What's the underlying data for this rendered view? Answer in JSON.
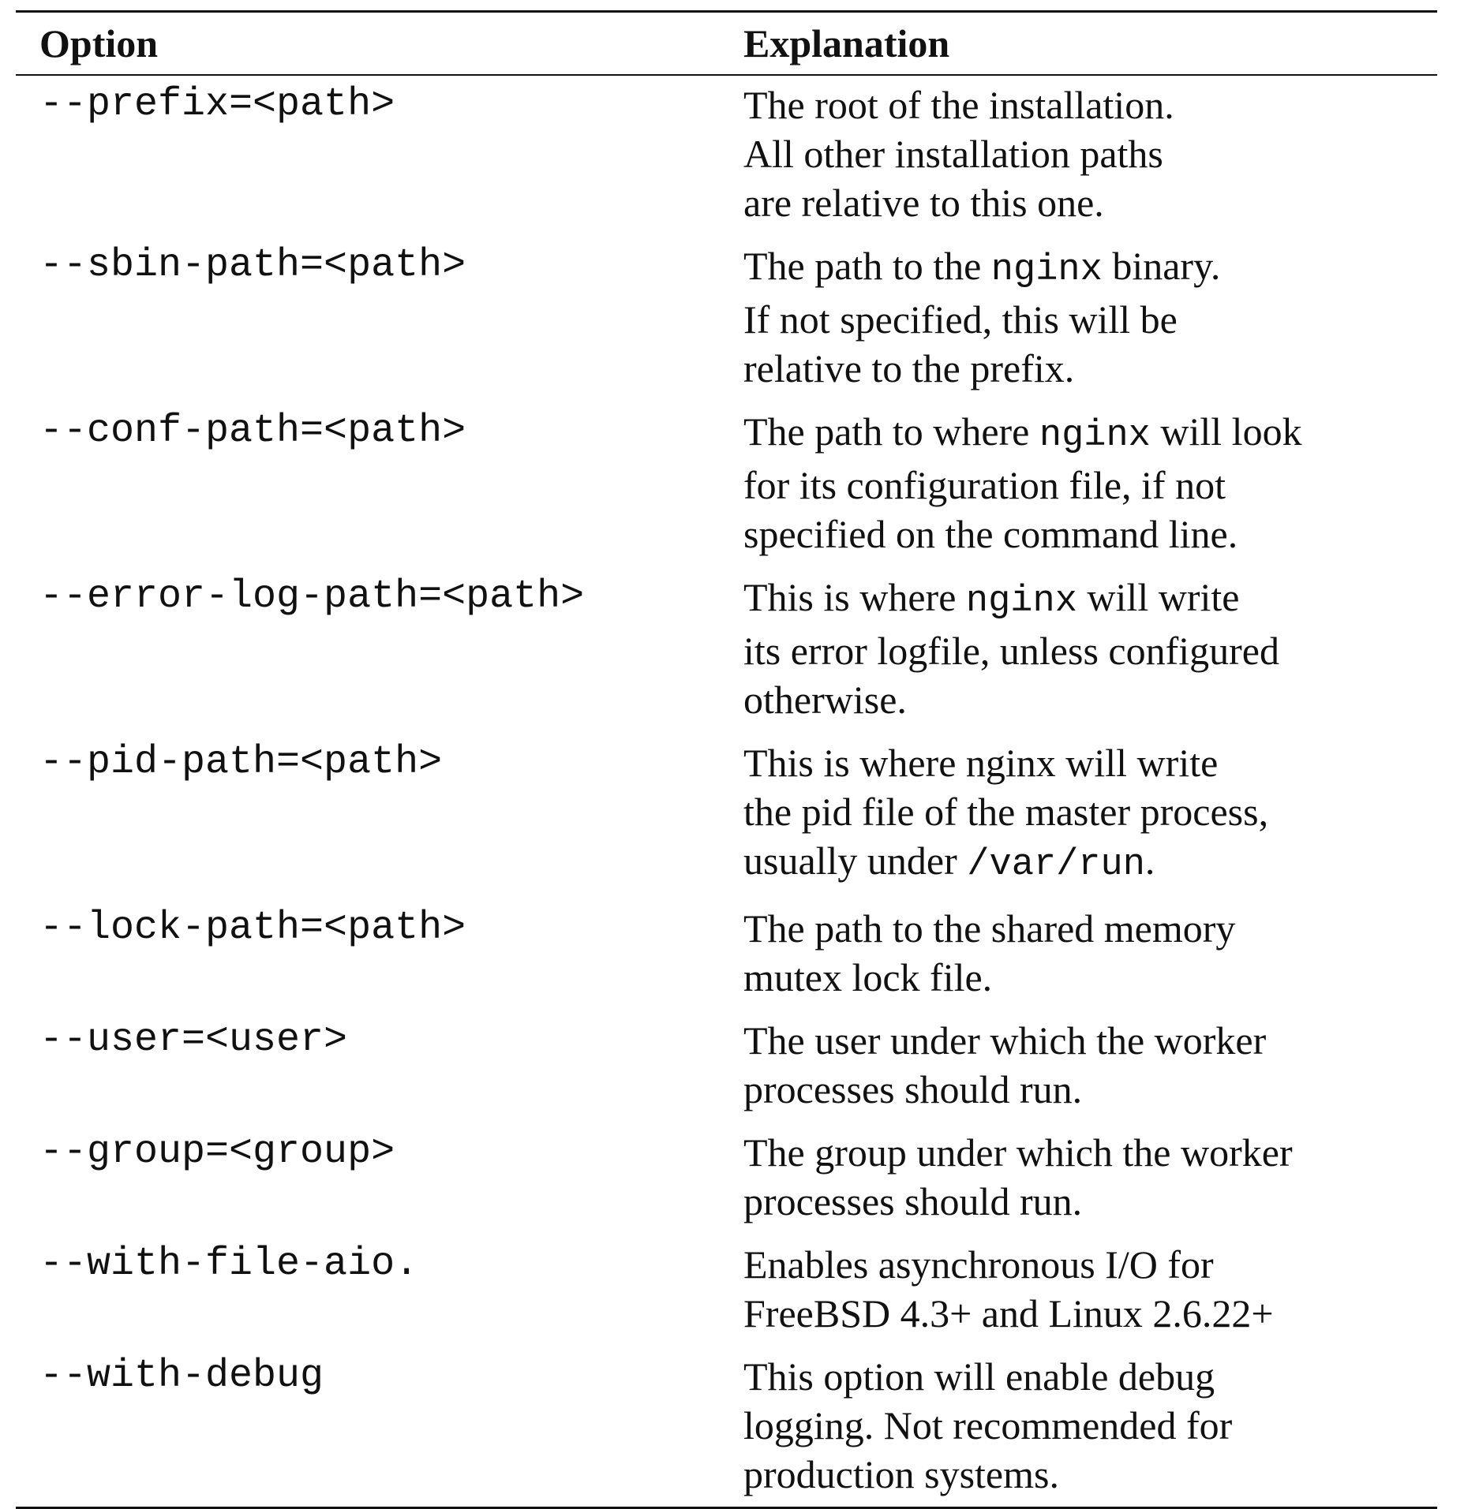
{
  "table": {
    "headers": {
      "option": "Option",
      "explanation": "Explanation"
    },
    "rows": [
      {
        "option": "--prefix=<path>",
        "explanation": [
          [
            {
              "t": "The root of the installation."
            }
          ],
          [
            {
              "t": "All other installation paths"
            }
          ],
          [
            {
              "t": "are relative to this one."
            }
          ]
        ]
      },
      {
        "option": "--sbin-path=<path>",
        "explanation": [
          [
            {
              "t": "The path to the "
            },
            {
              "t": "nginx",
              "mono": true
            },
            {
              "t": " binary."
            }
          ],
          [
            {
              "t": "If not specified, this will be"
            }
          ],
          [
            {
              "t": "relative to the prefix."
            }
          ]
        ]
      },
      {
        "option": "--conf-path=<path>",
        "explanation": [
          [
            {
              "t": "The path to where "
            },
            {
              "t": "nginx",
              "mono": true
            },
            {
              "t": " will look"
            }
          ],
          [
            {
              "t": "for its configuration file, if not"
            }
          ],
          [
            {
              "t": "specified on the command line."
            }
          ]
        ]
      },
      {
        "option": "--error-log-path=<path>",
        "explanation": [
          [
            {
              "t": "This is where "
            },
            {
              "t": "nginx",
              "mono": true
            },
            {
              "t": " will write"
            }
          ],
          [
            {
              "t": "its error logfile, unless configured"
            }
          ],
          [
            {
              "t": "otherwise."
            }
          ]
        ]
      },
      {
        "option": "--pid-path=<path>",
        "explanation": [
          [
            {
              "t": "This is where nginx will write"
            }
          ],
          [
            {
              "t": "the pid file of the master process,"
            }
          ],
          [
            {
              "t": "usually under "
            },
            {
              "t": "/var/run",
              "mono": true
            },
            {
              "t": "."
            }
          ]
        ]
      },
      {
        "option": "--lock-path=<path>",
        "explanation": [
          [
            {
              "t": "The path to the shared memory"
            }
          ],
          [
            {
              "t": "mutex lock file."
            }
          ]
        ]
      },
      {
        "option": "--user=<user>",
        "explanation": [
          [
            {
              "t": "The user under which the worker"
            }
          ],
          [
            {
              "t": "processes should run."
            }
          ]
        ]
      },
      {
        "option": "--group=<group>",
        "explanation": [
          [
            {
              "t": "The group under which the worker"
            }
          ],
          [
            {
              "t": "processes should run."
            }
          ]
        ]
      },
      {
        "option": "--with-file-aio.",
        "explanation": [
          [
            {
              "t": "Enables asynchronous I/O for"
            }
          ],
          [
            {
              "t": "FreeBSD 4.3+ and Linux 2.6.22+"
            }
          ]
        ]
      },
      {
        "option": "--with-debug",
        "explanation": [
          [
            {
              "t": "This option will enable debug"
            }
          ],
          [
            {
              "t": "logging. Not recommended for"
            }
          ],
          [
            {
              "t": "production systems."
            }
          ]
        ]
      }
    ]
  }
}
